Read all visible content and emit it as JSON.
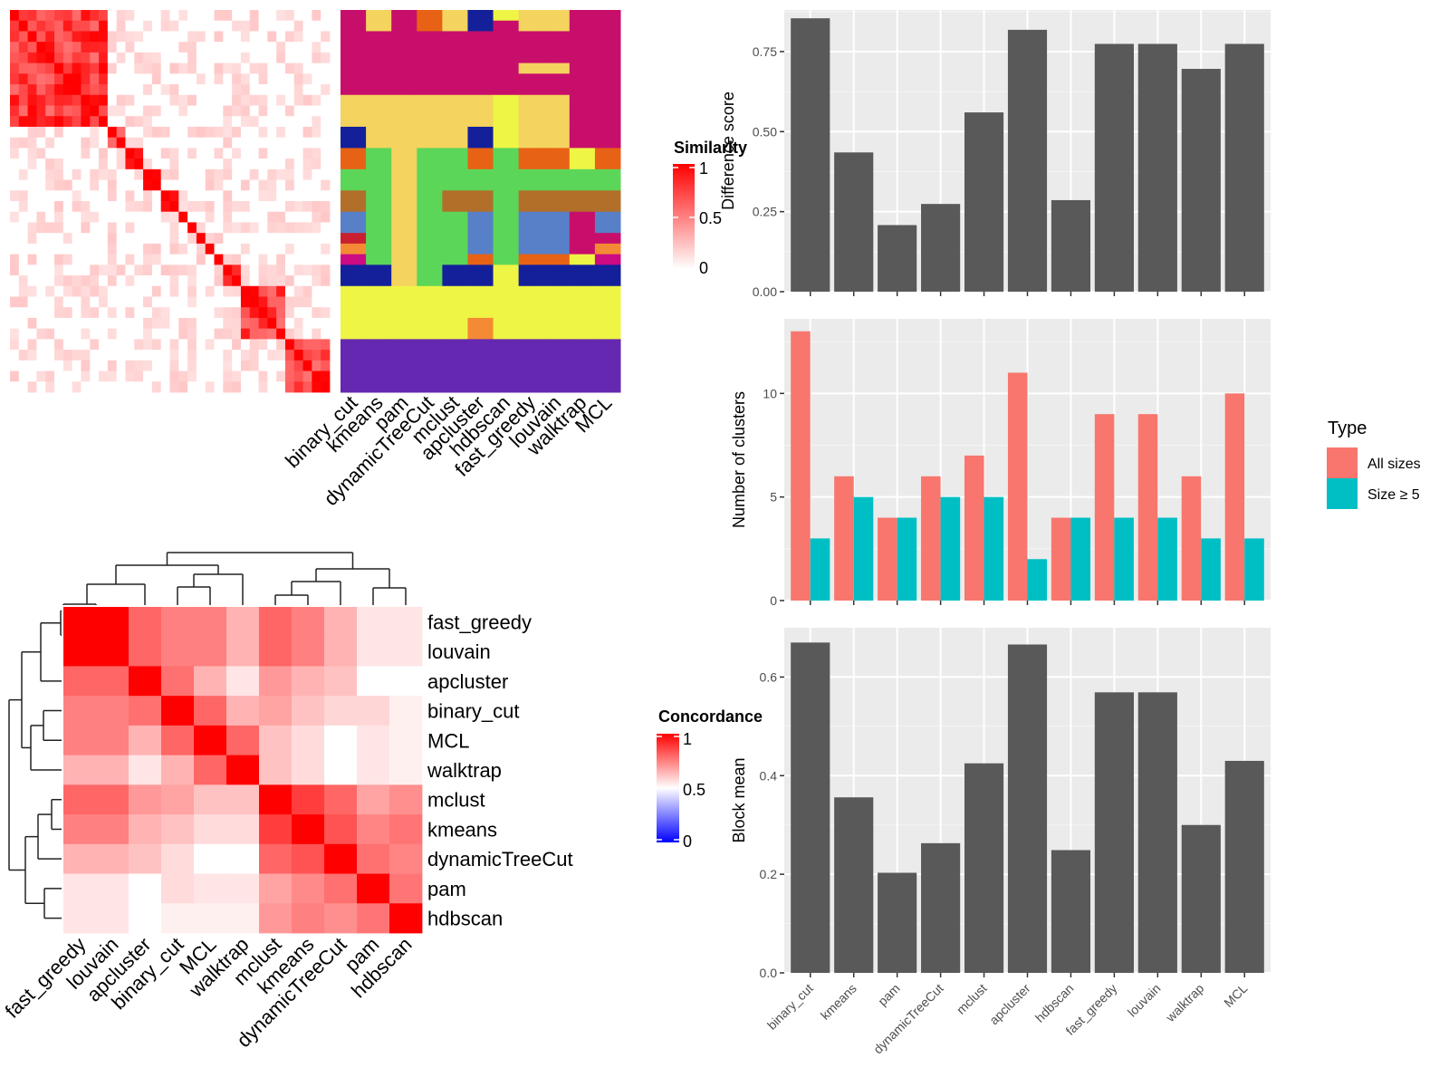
{
  "chart_data": [
    {
      "id": "similarity_heatmap",
      "type": "heatmap",
      "title": "",
      "description": "Consensus similarity matrix of samples (reordered), white to red",
      "legend": {
        "title": "Similarity",
        "ticks": [
          "1",
          "0.5",
          "0"
        ],
        "range": [
          0,
          1
        ],
        "colors": [
          "#ffffff",
          "#ff0000"
        ]
      },
      "diagonal_blocks": [
        {
          "start": 0,
          "size": 11
        },
        {
          "start": 11,
          "size": 2
        },
        {
          "start": 13,
          "size": 2
        },
        {
          "start": 15,
          "size": 2
        },
        {
          "start": 17,
          "size": 2
        },
        {
          "start": 19,
          "size": 1
        },
        {
          "start": 20,
          "size": 1
        },
        {
          "start": 21,
          "size": 1
        },
        {
          "start": 22,
          "size": 1
        },
        {
          "start": 23,
          "size": 1
        },
        {
          "start": 24,
          "size": 2
        },
        {
          "start": 26,
          "size": 5
        },
        {
          "start": 31,
          "size": 5
        }
      ],
      "n_samples": 36
    },
    {
      "id": "cluster_membership",
      "type": "heatmap",
      "title": "",
      "columns": [
        "binary_cut",
        "kmeans",
        "pam",
        "dynamicTreeCut",
        "mclust",
        "apcluster",
        "hdbscan",
        "fast_greedy",
        "louvain",
        "walktrap",
        "MCL"
      ],
      "palette": {
        "M": "#C80E6B",
        "Y": "#F4D35E",
        "O": "#E86216",
        "B": "#14209A",
        "L": "#EEF545",
        "G": "#5CD659",
        "Br": "#B26F2A",
        "Bl": "#5780C8",
        "R": "#C82030",
        "Or": "#F48B34",
        "P": "#CC0B85",
        "V": "#6528B0"
      },
      "row_bands": [
        {
          "rows": 1,
          "cells": [
            "M",
            "Y",
            "M",
            "O",
            "Y",
            "B",
            "L",
            "Y",
            "Y",
            "M",
            "M"
          ]
        },
        {
          "rows": 1,
          "cells": [
            "M",
            "Y",
            "M",
            "O",
            "Y",
            "B",
            "M",
            "Y",
            "Y",
            "M",
            "M"
          ]
        },
        {
          "rows": 3,
          "cells": [
            "M",
            "M",
            "M",
            "M",
            "M",
            "M",
            "M",
            "M",
            "M",
            "M",
            "M"
          ]
        },
        {
          "rows": 1,
          "cells": [
            "M",
            "M",
            "M",
            "M",
            "M",
            "M",
            "M",
            "Y",
            "Y",
            "M",
            "M"
          ]
        },
        {
          "rows": 2,
          "cells": [
            "M",
            "M",
            "M",
            "M",
            "M",
            "M",
            "M",
            "M",
            "M",
            "M",
            "M"
          ]
        },
        {
          "rows": 3,
          "cells": [
            "Y",
            "Y",
            "Y",
            "Y",
            "Y",
            "Y",
            "L",
            "Y",
            "Y",
            "M",
            "M"
          ]
        },
        {
          "rows": 2,
          "cells": [
            "B",
            "Y",
            "Y",
            "Y",
            "Y",
            "B",
            "L",
            "Y",
            "Y",
            "M",
            "M"
          ]
        },
        {
          "rows": 2,
          "cells": [
            "O",
            "G",
            "Y",
            "G",
            "G",
            "O",
            "G",
            "O",
            "O",
            "L",
            "O"
          ]
        },
        {
          "rows": 2,
          "cells": [
            "G",
            "G",
            "Y",
            "G",
            "G",
            "G",
            "G",
            "G",
            "G",
            "G",
            "G"
          ]
        },
        {
          "rows": 2,
          "cells": [
            "Br",
            "G",
            "Y",
            "G",
            "Br",
            "Br",
            "G",
            "Br",
            "Br",
            "Br",
            "Br"
          ]
        },
        {
          "rows": 2,
          "cells": [
            "Bl",
            "G",
            "Y",
            "G",
            "G",
            "Bl",
            "G",
            "Bl",
            "Bl",
            "M",
            "Bl"
          ]
        },
        {
          "rows": 1,
          "cells": [
            "R",
            "G",
            "Y",
            "G",
            "G",
            "Bl",
            "G",
            "Bl",
            "Bl",
            "M",
            "M"
          ]
        },
        {
          "rows": 1,
          "cells": [
            "Or",
            "G",
            "Y",
            "G",
            "G",
            "Bl",
            "G",
            "Bl",
            "Bl",
            "M",
            "Or"
          ]
        },
        {
          "rows": 1,
          "cells": [
            "P",
            "G",
            "Y",
            "G",
            "G",
            "O",
            "G",
            "O",
            "O",
            "L",
            "P"
          ]
        },
        {
          "rows": 2,
          "cells": [
            "B",
            "B",
            "Y",
            "G",
            "B",
            "B",
            "L",
            "B",
            "B",
            "B",
            "B"
          ]
        },
        {
          "rows": 3,
          "cells": [
            "L",
            "L",
            "L",
            "L",
            "L",
            "L",
            "L",
            "L",
            "L",
            "L",
            "L"
          ]
        },
        {
          "rows": 2,
          "cells": [
            "L",
            "L",
            "L",
            "L",
            "L",
            "Or",
            "L",
            "L",
            "L",
            "L",
            "L"
          ]
        },
        {
          "rows": 5,
          "cells": [
            "V",
            "V",
            "V",
            "V",
            "V",
            "V",
            "V",
            "V",
            "V",
            "V",
            "V"
          ]
        }
      ]
    },
    {
      "id": "difference_score",
      "type": "bar",
      "title": "",
      "xlabel": "",
      "ylabel": "Difference score",
      "categories": [
        "binary_cut",
        "kmeans",
        "pam",
        "dynamicTreeCut",
        "mclust",
        "apcluster",
        "hdbscan",
        "fast_greedy",
        "louvain",
        "walktrap",
        "MCL"
      ],
      "values": [
        0.854,
        0.435,
        0.208,
        0.274,
        0.56,
        0.818,
        0.286,
        0.774,
        0.774,
        0.696,
        0.774
      ],
      "ylim": [
        0,
        0.88
      ],
      "yticks": [
        0,
        0.25,
        0.5,
        0.75
      ],
      "ytick_labels": [
        "0.00",
        "0.25",
        "0.50",
        "0.75"
      ],
      "grid": true,
      "bar_color": "#595959"
    },
    {
      "id": "number_of_clusters",
      "type": "bar",
      "title": "",
      "xlabel": "",
      "ylabel": "Number of clusters",
      "categories": [
        "binary_cut",
        "kmeans",
        "pam",
        "dynamicTreeCut",
        "mclust",
        "apcluster",
        "hdbscan",
        "fast_greedy",
        "louvain",
        "walktrap",
        "MCL"
      ],
      "series": [
        {
          "name": "All sizes",
          "color": "#F8766D",
          "values": [
            13,
            6,
            4,
            6,
            7,
            11,
            4,
            9,
            9,
            6,
            10
          ]
        },
        {
          "name": "Size ≥ 5",
          "color": "#00BFC4",
          "values": [
            3,
            5,
            4,
            5,
            5,
            2,
            4,
            4,
            4,
            3,
            3
          ]
        }
      ],
      "ylim": [
        0,
        13.6
      ],
      "yticks": [
        0,
        5,
        10
      ],
      "ytick_labels": [
        "0",
        "5",
        "10"
      ],
      "grid": true,
      "legend": {
        "title": "Type",
        "position": "right"
      }
    },
    {
      "id": "block_mean",
      "type": "bar",
      "title": "",
      "xlabel": "",
      "ylabel": "Block mean",
      "categories": [
        "binary_cut",
        "kmeans",
        "pam",
        "dynamicTreeCut",
        "mclust",
        "apcluster",
        "hdbscan",
        "fast_greedy",
        "louvain",
        "walktrap",
        "MCL"
      ],
      "values": [
        0.67,
        0.356,
        0.203,
        0.263,
        0.425,
        0.666,
        0.249,
        0.569,
        0.569,
        0.3,
        0.43
      ],
      "ylim": [
        0,
        0.7
      ],
      "yticks": [
        0,
        0.2,
        0.4,
        0.6
      ],
      "ytick_labels": [
        "0.0",
        "0.2",
        "0.4",
        "0.6"
      ],
      "grid": true,
      "bar_color": "#595959"
    },
    {
      "id": "concordance_heatmap",
      "type": "heatmap",
      "title": "",
      "labels": [
        "fast_greedy",
        "louvain",
        "apcluster",
        "binary_cut",
        "MCL",
        "walktrap",
        "mclust",
        "kmeans",
        "dynamicTreeCut",
        "pam",
        "hdbscan"
      ],
      "legend": {
        "title": "Concordance",
        "ticks": [
          "1",
          "0.5",
          "0"
        ],
        "range": [
          0,
          1
        ],
        "colors": [
          "#0000ff",
          "#ffffff",
          "#ff0000"
        ]
      },
      "values": [
        [
          1.0,
          1.0,
          0.8,
          0.75,
          0.75,
          0.65,
          0.8,
          0.75,
          0.65,
          0.55,
          0.55
        ],
        [
          1.0,
          1.0,
          0.8,
          0.75,
          0.75,
          0.65,
          0.8,
          0.75,
          0.65,
          0.55,
          0.55
        ],
        [
          0.8,
          0.8,
          1.0,
          0.78,
          0.65,
          0.55,
          0.7,
          0.65,
          0.62,
          0.5,
          0.5
        ],
        [
          0.75,
          0.75,
          0.78,
          1.0,
          0.8,
          0.65,
          0.68,
          0.62,
          0.58,
          0.58,
          0.53
        ],
        [
          0.75,
          0.75,
          0.65,
          0.8,
          1.0,
          0.8,
          0.62,
          0.57,
          0.5,
          0.55,
          0.53
        ],
        [
          0.65,
          0.65,
          0.55,
          0.65,
          0.8,
          1.0,
          0.62,
          0.57,
          0.5,
          0.55,
          0.53
        ],
        [
          0.8,
          0.8,
          0.7,
          0.68,
          0.62,
          0.62,
          1.0,
          0.88,
          0.8,
          0.68,
          0.72
        ],
        [
          0.75,
          0.75,
          0.65,
          0.62,
          0.57,
          0.57,
          0.88,
          1.0,
          0.84,
          0.74,
          0.77
        ],
        [
          0.65,
          0.65,
          0.62,
          0.57,
          0.5,
          0.5,
          0.8,
          0.84,
          1.0,
          0.78,
          0.74
        ],
        [
          0.55,
          0.55,
          0.5,
          0.57,
          0.55,
          0.55,
          0.68,
          0.73,
          0.78,
          1.0,
          0.77
        ],
        [
          0.55,
          0.55,
          0.5,
          0.53,
          0.53,
          0.53,
          0.7,
          0.75,
          0.72,
          0.77,
          1.0
        ]
      ],
      "row_dendrogram": true,
      "column_dendrogram": true
    }
  ]
}
